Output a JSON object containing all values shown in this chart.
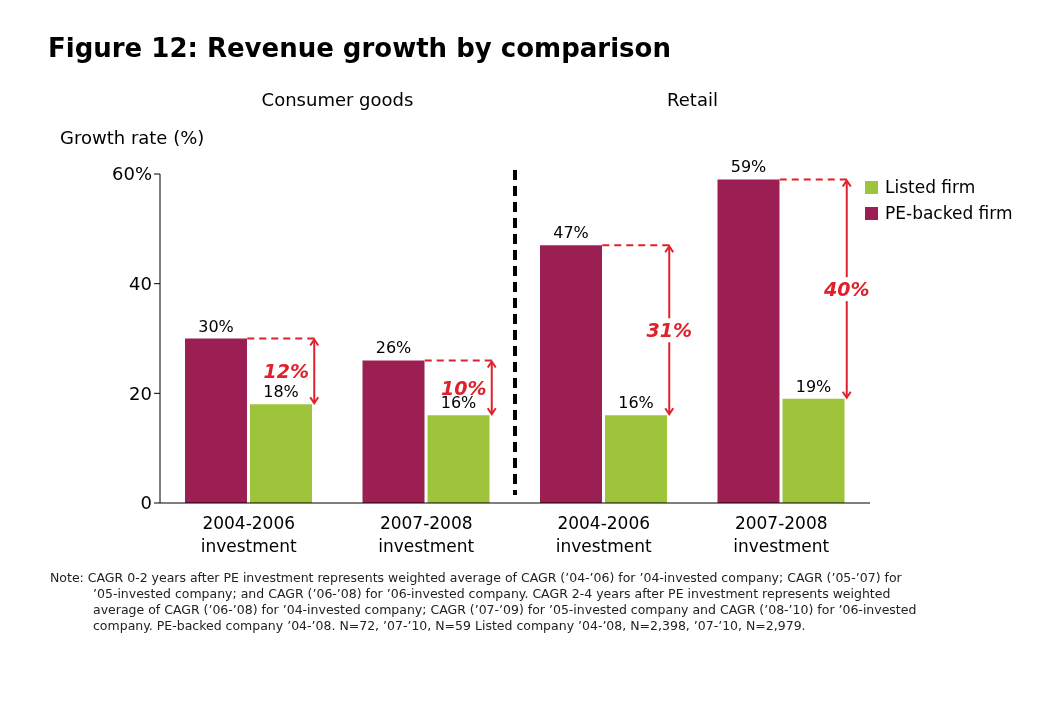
{
  "chart_data": {
    "type": "bar",
    "title": "Figure 12: Revenue growth by comparison",
    "ylabel": "Growth rate (%)",
    "categories": [
      "2004-2006 investment",
      "2007-2008 investment",
      "2004-2006 investment",
      "2007-2008 investment"
    ],
    "series": [
      {
        "name": "PE-backed firm",
        "color": "#9c1f53",
        "values": [
          30,
          26,
          47,
          59
        ],
        "value_labels": [
          "30%",
          "26%",
          "47%",
          "59%"
        ]
      },
      {
        "name": "Listed firm",
        "color": "#9dc43a",
        "values": [
          18,
          16,
          16,
          19
        ],
        "value_labels": [
          "18%",
          "16%",
          "16%",
          "19%"
        ]
      }
    ],
    "ylim": [
      0,
      60
    ],
    "yticks": [
      0,
      20,
      40,
      {
        "value": 60,
        "label": "60%"
      }
    ],
    "grid": false,
    "legend": "top right",
    "annotations": [
      "Consumer goods",
      "Retail",
      "12%",
      "10%",
      "31%",
      "40%",
      "Note: CAGR 0-2 years after PE investment represents weighted average of CAGR (’04-’06) for ’04-invested company; CAGR (’05-’07) for ’05-invested company; and CAGR (’06-’08) for ’06-invested company. CAGR 2-4 years after PE investment represents weighted average of CAGR (’06-’08) for ’04-invested company; CAGR (’07-’09) for ’05-invested company and CAGR (’08-’10) for ’06-invested company. PE-backed company ’04-’08. N=72, ’07-’10, N=59 Listed company ’04-’08, N=2,398, ’07-’10, N=2,979."
    ]
  }
}
